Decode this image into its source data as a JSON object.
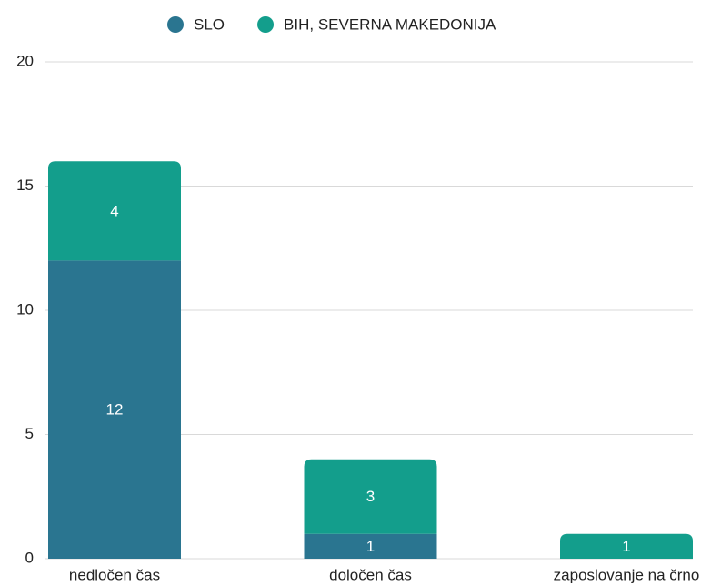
{
  "chart_data": {
    "type": "stacked_bar",
    "categories": [
      "nedločen čas",
      "določen čas",
      "zaposlovanje na črno"
    ],
    "series": [
      {
        "name": "SLO",
        "color": "#2a7590",
        "values": [
          12,
          1,
          null
        ]
      },
      {
        "name": "BIH, SEVERNA MAKEDONIJA",
        "color": "#139e8c",
        "values": [
          4,
          3,
          1
        ]
      }
    ],
    "ylim": [
      0,
      20
    ],
    "yticks": [
      0,
      5,
      10,
      15,
      20
    ],
    "grid": true,
    "legend": "top"
  }
}
